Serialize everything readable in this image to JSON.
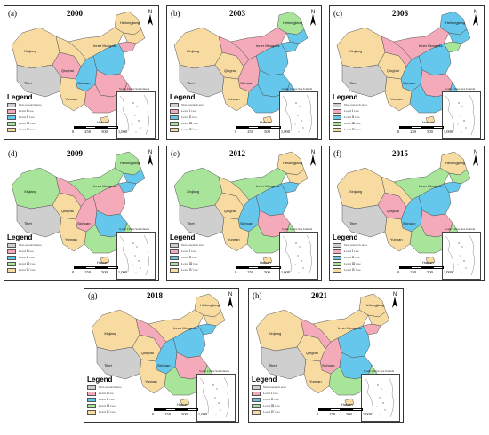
{
  "colors": {
    "non": "#cfcfcf",
    "level1": "#f4aab9",
    "level2": "#66c7ec",
    "level3": "#a8e59a",
    "level4": "#f8dba0",
    "border": "#555555"
  },
  "legend": {
    "title": "Legend",
    "items": [
      {
        "key": "non",
        "label": "Non-research area"
      },
      {
        "key": "level1",
        "label": "Level Ⅰ Cee"
      },
      {
        "key": "level2",
        "label": "Level Ⅱ Cee"
      },
      {
        "key": "level3",
        "label": "Level Ⅲ Cee"
      },
      {
        "key": "level4",
        "label": "Level Ⅳ Cee"
      }
    ]
  },
  "inset_label": "South China Sea Islands",
  "north_label": "N",
  "scale_ticks": [
    "0",
    "250",
    "500",
    "1,000"
  ],
  "region_names": [
    "Xinjiang",
    "Tibet",
    "Qinghai",
    "Inner Mongolia",
    "Heilongjiang",
    "Sichuan",
    "Yunnan",
    "Hainan"
  ],
  "panels": [
    {
      "label": "(a)",
      "year": "2000",
      "regions": {
        "xinjiang": "level4",
        "tibet": "non",
        "qinghai": "level1",
        "gansu": "level4",
        "innermongolia": "level4",
        "heilongjiang": "level4",
        "jilin": "level4",
        "liaoning": "level1",
        "northchina": "level2",
        "sichuan": "level2",
        "central": "level1",
        "yunnan": "level4",
        "southeast": "level1",
        "hainan": "level4"
      }
    },
    {
      "label": "(b)",
      "year": "2003",
      "regions": {
        "xinjiang": "level4",
        "tibet": "non",
        "qinghai": "level4",
        "gansu": "level1",
        "innermongolia": "level1",
        "heilongjiang": "level3",
        "jilin": "level2",
        "liaoning": "level2",
        "northchina": "level2",
        "sichuan": "level1",
        "central": "level2",
        "yunnan": "level4",
        "southeast": "level2",
        "hainan": "level4"
      }
    },
    {
      "label": "(c)",
      "year": "2006",
      "regions": {
        "xinjiang": "level4",
        "tibet": "non",
        "qinghai": "level4",
        "gansu": "level1",
        "innermongolia": "level1",
        "heilongjiang": "level2",
        "jilin": "level2",
        "liaoning": "level3",
        "northchina": "level2",
        "sichuan": "level2",
        "central": "level1",
        "yunnan": "level4",
        "southeast": "level2",
        "hainan": "level4"
      }
    },
    {
      "label": "(d)",
      "year": "2009",
      "regions": {
        "xinjiang": "level3",
        "tibet": "non",
        "qinghai": "level4",
        "gansu": "level1",
        "innermongolia": "level3",
        "heilongjiang": "level3",
        "jilin": "level2",
        "liaoning": "level2",
        "northchina": "level1",
        "sichuan": "level1",
        "central": "level2",
        "yunnan": "level4",
        "southeast": "level3",
        "hainan": "level4"
      }
    },
    {
      "label": "(e)",
      "year": "2012",
      "regions": {
        "xinjiang": "level3",
        "tibet": "non",
        "qinghai": "level4",
        "gansu": "level4",
        "innermongolia": "level3",
        "heilongjiang": "level4",
        "jilin": "level4",
        "liaoning": "level2",
        "northchina": "level2",
        "sichuan": "level2",
        "central": "level1",
        "yunnan": "level4",
        "southeast": "level3",
        "hainan": "level4"
      }
    },
    {
      "label": "(f)",
      "year": "2015",
      "regions": {
        "xinjiang": "level4",
        "tibet": "non",
        "qinghai": "level1",
        "gansu": "level4",
        "innermongolia": "level3",
        "heilongjiang": "level4",
        "jilin": "level3",
        "liaoning": "level2",
        "northchina": "level2",
        "sichuan": "level2",
        "central": "level1",
        "yunnan": "level4",
        "southeast": "level3",
        "hainan": "level4"
      }
    },
    {
      "label": "(g)",
      "year": "2018",
      "regions": {
        "xinjiang": "level4",
        "tibet": "non",
        "qinghai": "level4",
        "gansu": "level1",
        "innermongolia": "level4",
        "heilongjiang": "level4",
        "jilin": "level4",
        "liaoning": "level2",
        "northchina": "level2",
        "sichuan": "level2",
        "central": "level1",
        "yunnan": "level4",
        "southeast": "level3",
        "hainan": "level4"
      }
    },
    {
      "label": "(h)",
      "year": "2021",
      "regions": {
        "xinjiang": "level4",
        "tibet": "non",
        "qinghai": "level4",
        "gansu": "level1",
        "innermongolia": "level4",
        "heilongjiang": "level4",
        "jilin": "level4",
        "liaoning": "level1",
        "northchina": "level2",
        "sichuan": "level1",
        "central": "level2",
        "yunnan": "level4",
        "southeast": "level3",
        "hainan": "level4"
      }
    }
  ]
}
